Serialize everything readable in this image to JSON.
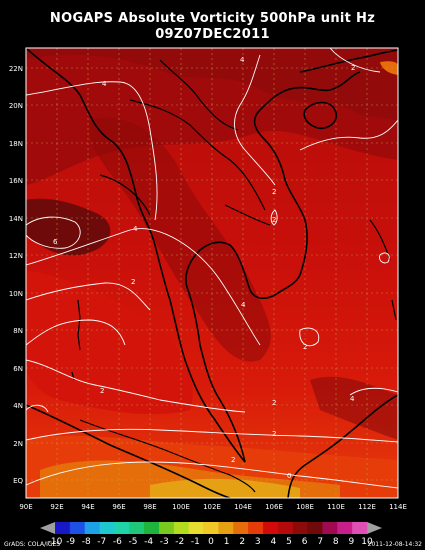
{
  "title": {
    "line1": "NOGAPS Absolute Vorticity 500hPa unit Hz",
    "line2": "09Z07DEC2011"
  },
  "map": {
    "lon_range_deg_e": [
      90,
      114
    ],
    "lat_range_deg_n": [
      -1,
      23
    ],
    "x_ticks": [
      "90E",
      "92E",
      "94E",
      "96E",
      "98E",
      "100E",
      "102E",
      "104E",
      "106E",
      "108E",
      "110E",
      "112E",
      "114E"
    ],
    "y_ticks": [
      "EQ",
      "2N",
      "4N",
      "6N",
      "8N",
      "10N",
      "12N",
      "14N",
      "16N",
      "18N",
      "20N",
      "22N"
    ],
    "contour_labels": [
      "4",
      "4",
      "2",
      "2",
      "2",
      "2",
      "4",
      "4",
      "2",
      "2",
      "2",
      "2",
      "2",
      "0",
      "6",
      "4"
    ],
    "colors": {
      "land_border": "#000000",
      "grid": "#c8a050",
      "contour": "#ffffff",
      "frame": "#ffffff"
    }
  },
  "colorbar": {
    "labels": [
      "-10",
      "-9",
      "-8",
      "-7",
      "-6",
      "-5",
      "-4",
      "-3",
      "-2",
      "-1",
      "0",
      "1",
      "2",
      "3",
      "4",
      "5",
      "6",
      "7",
      "8",
      "9",
      "10"
    ],
    "colors": [
      "#1818c8",
      "#1e50e6",
      "#1ea0e6",
      "#1ec8d2",
      "#1ed2aa",
      "#1ec878",
      "#1eb43c",
      "#78c81e",
      "#b4dc1e",
      "#e6dc32",
      "#f0c828",
      "#e6a014",
      "#e66e0a",
      "#e63c0a",
      "#d20a0a",
      "#b40a0a",
      "#8c0a0a",
      "#6e0a0a",
      "#a00a50",
      "#c81e8c",
      "#e050b4"
    ]
  },
  "footer": {
    "left": "GrADS: COLA/IGES",
    "right": "2011-12-08-14:32"
  }
}
